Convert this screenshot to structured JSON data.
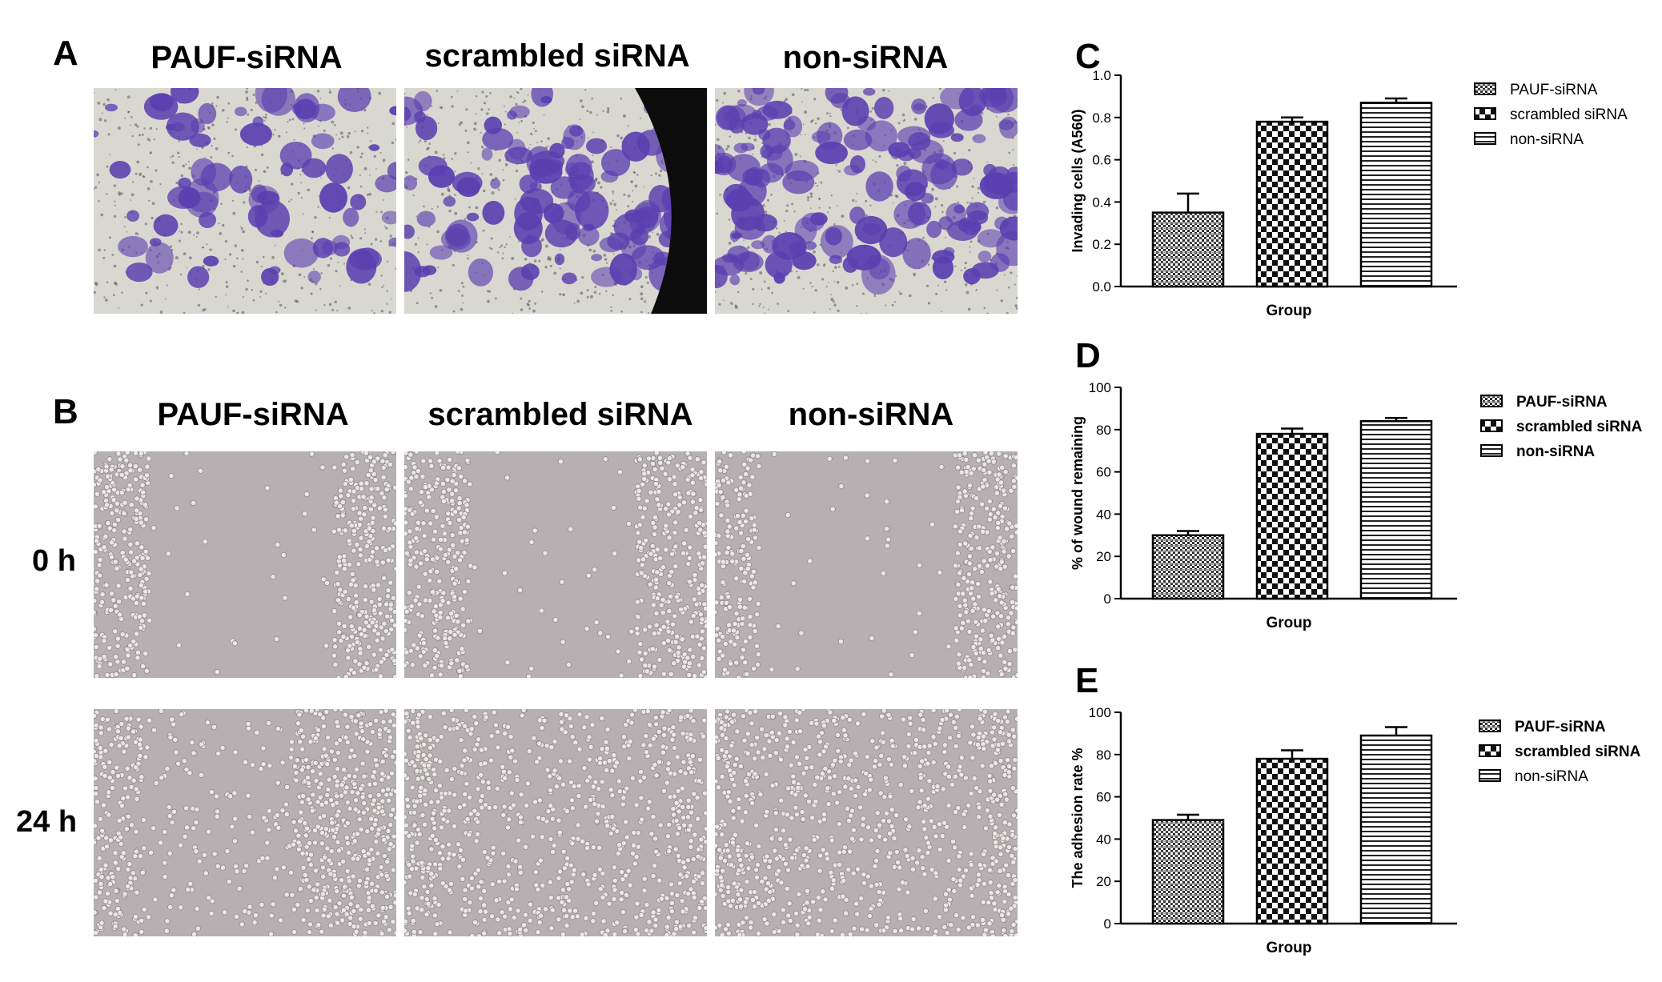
{
  "panels": {
    "a_letter": "A",
    "b_letter": "B",
    "c_letter": "C",
    "d_letter": "D",
    "e_letter": "E"
  },
  "image_columns": {
    "a": [
      "PAUF-siRNA",
      "scrambled siRNA",
      "non-siRNA"
    ],
    "b": [
      "PAUF-siRNA",
      "scrambled siRNA",
      "non-siRNA"
    ]
  },
  "time_rows": [
    "0 h",
    "24 h"
  ],
  "colors": {
    "invasion_stain": "#5a3fb0",
    "invasion_bg": "#d8d8d0",
    "wound_bg": "#b6b0b3",
    "cell": "#eae6e4"
  },
  "chart_data": [
    {
      "id": "C",
      "type": "bar",
      "categories": [
        "PAUF-siRNA",
        "scrambled siRNA",
        "non-siRNA"
      ],
      "values": [
        0.35,
        0.78,
        0.87
      ],
      "errors": [
        0.09,
        0.02,
        0.02
      ],
      "xlabel": "Group",
      "ylabel": "Invading cells (A560)",
      "ylim": [
        0,
        1.0
      ],
      "yticks": [
        "0.0",
        "0.2",
        "0.4",
        "0.6",
        "0.8",
        "1.0"
      ],
      "legend": [
        "PAUF-siRNA",
        "scrambled siRNA",
        "non-siRNA"
      ],
      "legend_bold": false,
      "legend_position": "right"
    },
    {
      "id": "D",
      "type": "bar",
      "categories": [
        "PAUF-siRNA",
        "scrambled siRNA",
        "non-siRNA"
      ],
      "values": [
        30,
        78,
        84
      ],
      "errors": [
        2,
        2.5,
        1.5
      ],
      "xlabel": "Group",
      "ylabel": "% of wound remaining",
      "ylim": [
        0,
        100
      ],
      "yticks": [
        "0",
        "20",
        "40",
        "60",
        "80",
        "100"
      ],
      "legend": [
        "PAUF-siRNA",
        "scrambled siRNA",
        "non-siRNA"
      ],
      "legend_bold": true,
      "legend_position": "right"
    },
    {
      "id": "E",
      "type": "bar",
      "categories": [
        "PAUF-siRNA",
        "scrambled siRNA",
        "non-siRNA"
      ],
      "values": [
        49,
        78,
        89
      ],
      "errors": [
        2.5,
        4,
        4
      ],
      "xlabel": "Group",
      "ylabel": "The adhesion rate %",
      "ylim": [
        0,
        100
      ],
      "yticks": [
        "0",
        "20",
        "40",
        "60",
        "80",
        "100"
      ],
      "legend": [
        "PAUF-siRNA",
        "scrambled siRNA",
        "non-siRNA"
      ],
      "legend_bold_flags": [
        true,
        true,
        false
      ],
      "legend_position": "right"
    }
  ]
}
